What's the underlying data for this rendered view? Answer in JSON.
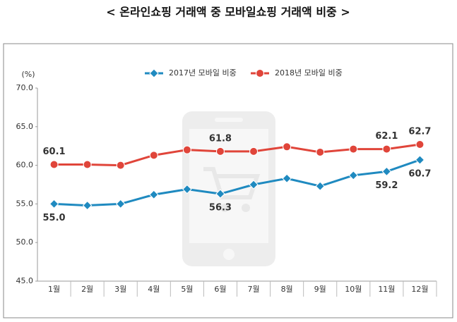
{
  "chart_data": {
    "type": "line",
    "title": "< 온라인쇼핑 거래액 중 모바일쇼핑 거래액 비중 >",
    "y_unit": "(%)",
    "categories": [
      "1월",
      "2월",
      "3월",
      "4월",
      "5월",
      "6월",
      "7월",
      "8월",
      "9월",
      "10월",
      "11월",
      "12월"
    ],
    "series": [
      {
        "name": "2017년 모바일 비중",
        "color": "#1f8ac0",
        "label_color": "#1f5f9a",
        "marker": "diamond",
        "values": [
          55.0,
          54.8,
          55.0,
          56.2,
          56.9,
          56.3,
          57.5,
          58.3,
          57.3,
          58.7,
          59.2,
          60.7
        ],
        "value_labels": [
          "55.0",
          null,
          null,
          null,
          null,
          "56.3",
          null,
          null,
          null,
          null,
          "59.2",
          "60.7"
        ]
      },
      {
        "name": "2018년 모바일 비중",
        "color": "#e0453a",
        "label_color": "#e0282e",
        "marker": "circle",
        "values": [
          60.1,
          60.1,
          60.0,
          61.3,
          62.0,
          61.8,
          61.8,
          62.4,
          61.7,
          62.1,
          62.1,
          62.7
        ],
        "value_labels": [
          "60.1",
          null,
          null,
          null,
          null,
          "61.8",
          null,
          null,
          null,
          null,
          "62.1",
          "62.7"
        ]
      }
    ],
    "ylim": [
      45,
      70
    ],
    "yticks": [
      {
        "value": 45,
        "label": "45.0"
      },
      {
        "value": 50,
        "label": "50.0"
      },
      {
        "value": 55,
        "label": "55.0"
      },
      {
        "value": 60,
        "label": "60.0"
      },
      {
        "value": 65,
        "label": "65.0"
      },
      {
        "value": 70,
        "label": "70.0"
      }
    ],
    "grid": false
  }
}
